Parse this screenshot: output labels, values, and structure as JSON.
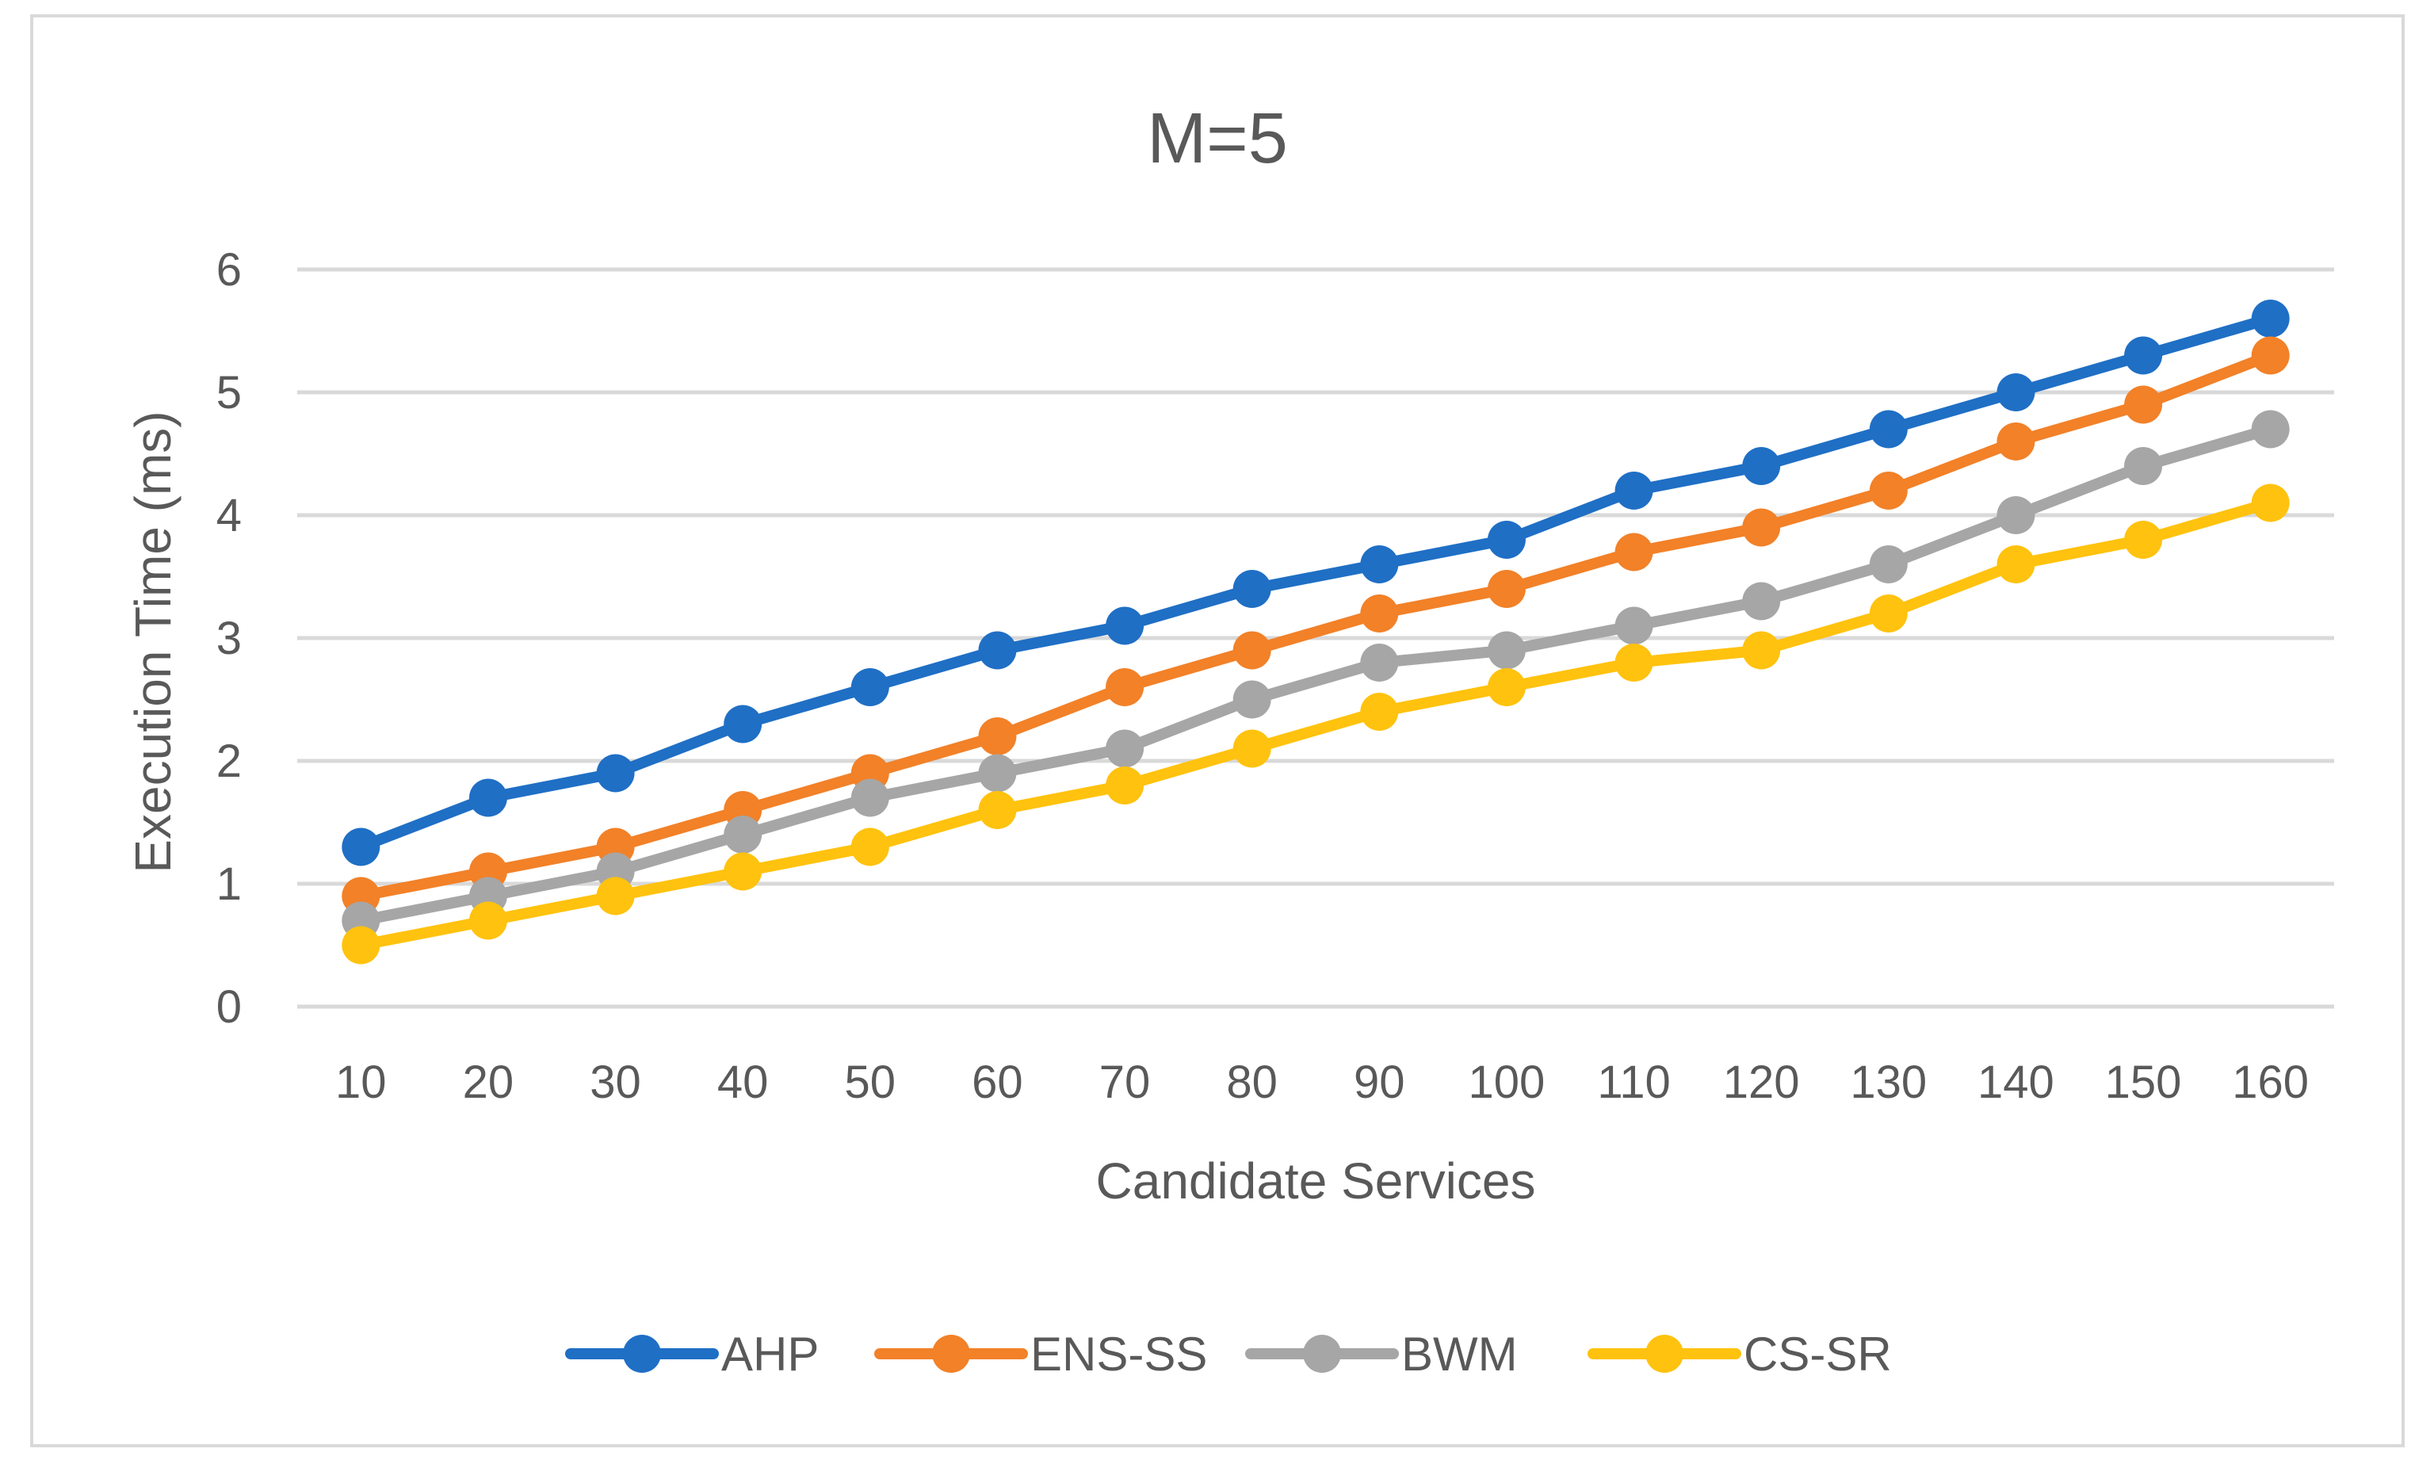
{
  "chart_data": {
    "type": "line",
    "title": "M=5",
    "xlabel": "Candidate Services",
    "ylabel": "Execution Time (ms)",
    "categories": [
      "10",
      "20",
      "30",
      "40",
      "50",
      "60",
      "70",
      "80",
      "90",
      "100",
      "110",
      "120",
      "130",
      "140",
      "150",
      "160"
    ],
    "ylim": [
      0,
      6
    ],
    "yticks": [
      "0",
      "1",
      "2",
      "3",
      "4",
      "5",
      "6"
    ],
    "grid": true,
    "legend": "bottom",
    "series": [
      {
        "name": "AHP",
        "color": "#1f6fc5",
        "values": [
          1.3,
          1.7,
          1.9,
          2.3,
          2.6,
          2.9,
          3.1,
          3.4,
          3.6,
          3.8,
          4.2,
          4.4,
          4.7,
          5.0,
          5.3,
          5.6
        ]
      },
      {
        "name": "ENS-SS",
        "color": "#f28128",
        "values": [
          0.9,
          1.1,
          1.3,
          1.6,
          1.9,
          2.2,
          2.6,
          2.9,
          3.2,
          3.4,
          3.7,
          3.9,
          4.2,
          4.6,
          4.9,
          5.3
        ]
      },
      {
        "name": "BWM",
        "color": "#a6a6a6",
        "values": [
          0.7,
          0.9,
          1.1,
          1.4,
          1.7,
          1.9,
          2.1,
          2.5,
          2.8,
          2.9,
          3.1,
          3.3,
          3.6,
          4.0,
          4.4,
          4.7
        ]
      },
      {
        "name": "CS-SR",
        "color": "#ffc20e",
        "values": [
          0.5,
          0.7,
          0.9,
          1.1,
          1.3,
          1.6,
          1.8,
          2.1,
          2.4,
          2.6,
          2.8,
          2.9,
          3.2,
          3.6,
          3.8,
          4.1
        ]
      }
    ]
  }
}
